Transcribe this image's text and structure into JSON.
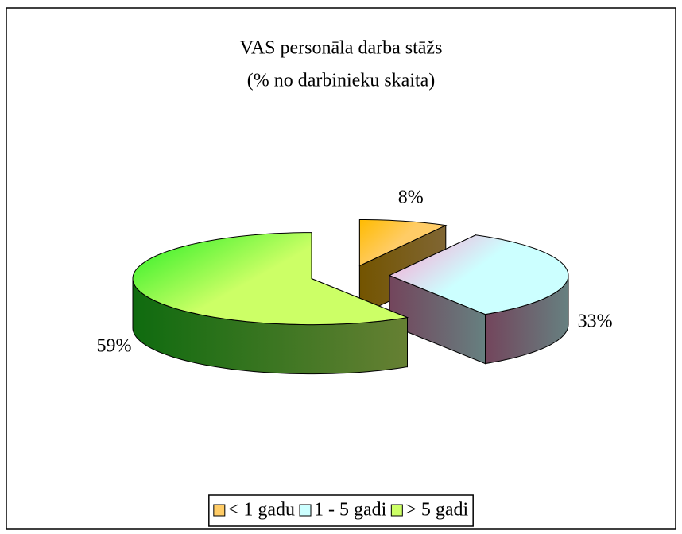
{
  "chart_data": {
    "type": "pie3d",
    "title": "VAS personāla darba stāžs",
    "subtitle": "(% no darbinieku skaita)",
    "categories": [
      "< 1 gadu",
      "1 - 5 gadi",
      "> 5 gadi"
    ],
    "values": [
      8,
      33,
      59
    ],
    "value_labels": [
      "8%",
      "33%",
      "59%"
    ],
    "colors": [
      "#ffcc66",
      "#ccffff",
      "#ccff66"
    ],
    "accent_colors": [
      "#ffbb00",
      "#ff99cc",
      "#22ee22"
    ],
    "legend": "bottom"
  }
}
